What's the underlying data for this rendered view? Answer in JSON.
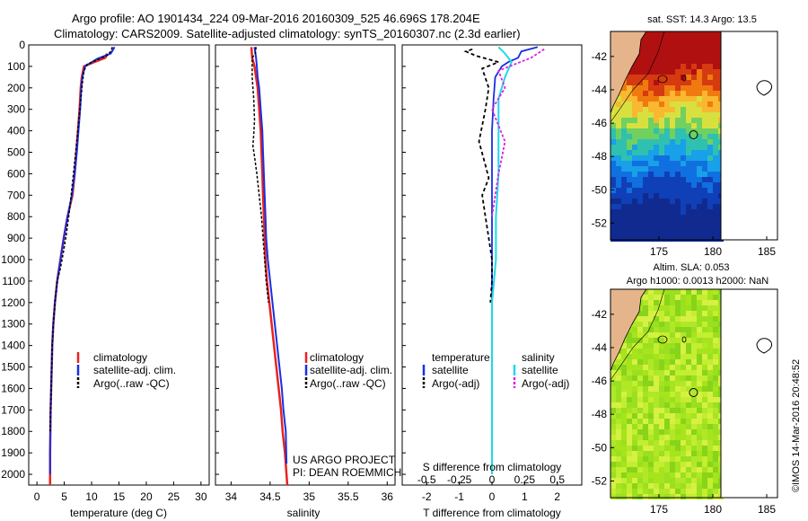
{
  "header": {
    "line1": "Argo profile: AO 1901434_224 09-Mar-2016 20160309_525 46.696S 178.204E",
    "line2": "Climatology: CARS2009. Satellite-adjusted climatology: synTS_20160307.nc (2.3d earlier)"
  },
  "credits": {
    "project": "US ARGO PROJECT",
    "pi": "PI: DEAN ROEMMICH",
    "timestamp": "©IMOS 14-Mar-2016 20:48:52"
  },
  "colors": {
    "climatology": "#e8231f",
    "satellite": "#1a2fe0",
    "argo": "#000000",
    "satellite_salinity": "#20d8e8",
    "argo_salinity": "#e020e0"
  },
  "chart_data": [
    {
      "type": "line",
      "panel": "temperature",
      "xlabel": "temperature (deg C)",
      "ylabel": "",
      "xlim": [
        -1.5,
        31.5
      ],
      "ylim": [
        2050,
        0
      ],
      "xticks": [
        "0",
        "5",
        "10",
        "15",
        "20",
        "25",
        "30"
      ],
      "yticks": [
        "0",
        "100",
        "200",
        "300",
        "400",
        "500",
        "600",
        "700",
        "800",
        "900",
        "1000",
        "1100",
        "1200",
        "1300",
        "1400",
        "1500",
        "1600",
        "1700",
        "1800",
        "1900",
        "2000"
      ],
      "legend": [
        "climatology",
        "satellite-adj. clim.",
        "Argo(..raw -QC)"
      ],
      "series": [
        {
          "name": "climatology",
          "x": [
            12.8,
            12.5,
            10.5,
            8.6,
            8.2,
            8.0,
            7.8,
            7.5,
            7.2,
            6.9,
            6.5,
            5.6,
            4.9,
            4.3,
            3.7,
            3.3,
            3.0,
            2.8,
            2.7,
            2.6,
            2.5,
            2.45,
            2.4,
            2.4
          ],
          "y": [
            40,
            60,
            80,
            100,
            150,
            200,
            300,
            400,
            500,
            600,
            700,
            800,
            900,
            1000,
            1100,
            1200,
            1300,
            1400,
            1500,
            1600,
            1700,
            1800,
            1900,
            2050
          ]
        },
        {
          "name": "satellite-adj. clim.",
          "x": [
            14.2,
            13.5,
            11.0,
            8.8,
            8.3,
            8.1,
            7.9,
            7.6,
            7.3,
            6.9,
            6.4,
            5.6,
            4.9,
            4.3,
            3.7,
            3.3,
            3.0,
            2.8,
            2.7,
            2.6,
            2.5,
            2.45,
            2.4,
            2.4
          ],
          "y": [
            10,
            40,
            65,
            100,
            150,
            200,
            300,
            400,
            500,
            600,
            700,
            800,
            900,
            1000,
            1100,
            1200,
            1300,
            1400,
            1500,
            1600,
            1700,
            1800,
            1900,
            2000
          ]
        },
        {
          "name": "Argo(..raw -QC)",
          "x": [
            13.8,
            13.5,
            12.8,
            11.0,
            9.2,
            8.6,
            8.3,
            8.0,
            7.7,
            7.4,
            7.0,
            6.6,
            6.0,
            5.4,
            4.8,
            4.3,
            3.7,
            3.3,
            3.0,
            2.8,
            2.7,
            2.6,
            2.5,
            2.4
          ],
          "y": [
            10,
            30,
            50,
            70,
            90,
            120,
            180,
            260,
            340,
            420,
            520,
            620,
            760,
            880,
            970,
            1040,
            1100,
            1200,
            1300,
            1400,
            1500,
            1600,
            1700,
            1800
          ]
        }
      ]
    },
    {
      "type": "line",
      "panel": "salinity",
      "xlabel": "salinity",
      "ylabel": "",
      "xlim": [
        33.8,
        36.1
      ],
      "ylim": [
        2050,
        0
      ],
      "xticks": [
        "34",
        "34.5",
        "35",
        "35.5",
        "36"
      ],
      "legend": [
        "climatology",
        "satellite-adj. clim.",
        "Argo(..raw -QC)"
      ],
      "series": [
        {
          "name": "climatology",
          "x": [
            34.26,
            34.27,
            34.3,
            34.32,
            34.34,
            34.36,
            34.38,
            34.39,
            34.4,
            34.41,
            34.42,
            34.43,
            34.44,
            34.46,
            34.49,
            34.52,
            34.55,
            34.58,
            34.61,
            34.64,
            34.66,
            34.69,
            34.72
          ],
          "y": [
            10,
            60,
            100,
            150,
            200,
            300,
            400,
            500,
            600,
            700,
            800,
            900,
            1000,
            1100,
            1200,
            1300,
            1400,
            1500,
            1600,
            1700,
            1800,
            1900,
            2050
          ]
        },
        {
          "name": "satellite-adj. clim.",
          "x": [
            34.3,
            34.32,
            34.33,
            34.34,
            34.36,
            34.38,
            34.4,
            34.41,
            34.42,
            34.43,
            34.44,
            34.45,
            34.47,
            34.5,
            34.53,
            34.56,
            34.59,
            34.62,
            34.65,
            34.67,
            34.7,
            34.71
          ],
          "y": [
            10,
            60,
            100,
            150,
            200,
            300,
            400,
            500,
            600,
            700,
            800,
            900,
            1000,
            1100,
            1200,
            1300,
            1400,
            1500,
            1600,
            1700,
            1800,
            1950
          ]
        },
        {
          "name": "Argo(..raw -QC)",
          "x": [
            34.32,
            34.31,
            34.27,
            34.27,
            34.29,
            34.3,
            34.29,
            34.28,
            34.3,
            34.33,
            34.36,
            34.39,
            34.41,
            34.43,
            34.45,
            34.48
          ],
          "y": [
            10,
            40,
            60,
            150,
            250,
            350,
            420,
            470,
            520,
            600,
            700,
            800,
            900,
            1000,
            1100,
            1200
          ]
        }
      ]
    },
    {
      "type": "line",
      "panel": "difference",
      "xlabel": "T difference from climatology",
      "xlabel2": "S difference from climatology",
      "xlim": [
        -2.75,
        2.75
      ],
      "ylim": [
        2050,
        0
      ],
      "xticks": [
        "-2",
        "-1",
        "0",
        "1",
        "2"
      ],
      "xticks2": [
        "-0.5",
        "-0.25",
        "0",
        "0.25",
        "0.5"
      ],
      "legend_headers": [
        "temperature",
        "salinity"
      ],
      "legend": [
        "satellite",
        "Argo(-adj)",
        "satellite",
        "Argo(-adj)"
      ],
      "series": [
        {
          "name": "satellite",
          "x": [
            1.4,
            0.9,
            0.8,
            0.5,
            0.3,
            0.1,
            0.05,
            0.0,
            0.0,
            0.0,
            0.0,
            0.0,
            0.0
          ],
          "y": [
            10,
            30,
            60,
            80,
            100,
            150,
            250,
            400,
            600,
            900,
            1200,
            1600,
            2000
          ]
        },
        {
          "name": "Argo(-adj)",
          "x": [
            -0.6,
            -0.8,
            -0.5,
            0.2,
            -0.3,
            -0.1,
            -0.2,
            -0.4,
            -0.2,
            -0.1,
            -0.3,
            -0.2,
            -0.1,
            0.0,
            0.0,
            -0.05
          ],
          "y": [
            20,
            30,
            50,
            80,
            110,
            200,
            300,
            450,
            560,
            620,
            700,
            800,
            900,
            1000,
            1100,
            1200
          ]
        },
        {
          "name": "satellite",
          "x": [
            0.05,
            0.1,
            0.15,
            0.1,
            0.05,
            0.05,
            0.05,
            0.03,
            0.03,
            0.0,
            0.0,
            0.0,
            0.0
          ],
          "y": [
            10,
            40,
            80,
            150,
            250,
            400,
            600,
            800,
            1000,
            1200,
            1400,
            1600,
            2000
          ]
        },
        {
          "name": "Argo(-adj)",
          "x": [
            0.4,
            0.3,
            0.05,
            0.1,
            0.0,
            0.1,
            0.05,
            0.0
          ],
          "y": [
            20,
            60,
            120,
            200,
            300,
            450,
            600,
            800
          ]
        }
      ]
    },
    {
      "type": "heatmap",
      "panel": "sst-map",
      "title": "sat. SST: 14.3 Argo: 13.5",
      "xlim": [
        170.5,
        186
      ],
      "ylim": [
        -53,
        -40.5
      ],
      "xticks": [
        "175",
        "180",
        "185"
      ],
      "yticks": [
        "-42",
        "-44",
        "-46",
        "-48",
        "-50",
        "-52"
      ],
      "marker": {
        "lon": 178.204,
        "lat": -46.696
      }
    },
    {
      "type": "heatmap",
      "panel": "sla-map",
      "title1": "Altim. SLA: 0.053",
      "title2": "Argo h1000: 0.0013 h2000: NaN",
      "xlim": [
        170.5,
        186
      ],
      "ylim": [
        -53,
        -40.5
      ],
      "xticks": [
        "175",
        "180",
        "185"
      ],
      "yticks": [
        "-42",
        "-44",
        "-46",
        "-48",
        "-50",
        "-52"
      ],
      "marker": {
        "lon": 178.204,
        "lat": -46.696
      }
    }
  ]
}
